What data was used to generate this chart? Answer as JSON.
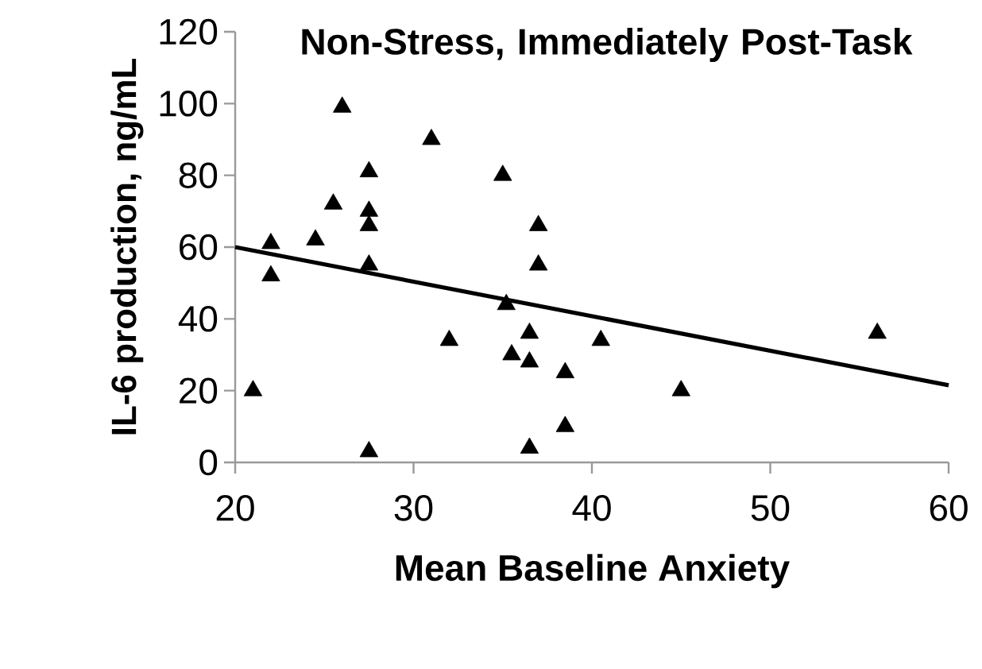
{
  "chart_data": {
    "type": "scatter",
    "title": "Non-Stress, Immediately Post-Task",
    "xlabel": "Mean Baseline Anxiety",
    "ylabel": "IL-6 production, ng/mL",
    "xlim": [
      20,
      60
    ],
    "xticks": [
      20,
      30,
      40,
      50,
      60
    ],
    "ylim": [
      0,
      120
    ],
    "yticks": [
      0,
      20,
      40,
      60,
      80,
      100,
      120
    ],
    "grid": false,
    "marker": "triangle",
    "series": [
      {
        "type": "scatter",
        "color": "#000000",
        "x": [
          21,
          22,
          22,
          24.5,
          25.5,
          26,
          27.5,
          27.5,
          27.5,
          27.5,
          27.5,
          31,
          32,
          35,
          35.2,
          35.5,
          36.5,
          36.5,
          36.5,
          37,
          37,
          38.5,
          38.5,
          40.5,
          45,
          56
        ],
        "values": [
          20,
          61,
          52,
          62,
          72,
          99,
          81,
          70,
          66,
          55,
          3,
          90,
          34,
          80,
          44,
          30,
          36,
          28,
          4,
          66,
          55,
          25,
          10,
          34,
          20,
          36
        ]
      },
      {
        "type": "line",
        "color": "#000000",
        "line_style": "solid",
        "marker": "none",
        "x": [
          20,
          60
        ],
        "values": [
          60,
          21.5
        ]
      }
    ]
  }
}
